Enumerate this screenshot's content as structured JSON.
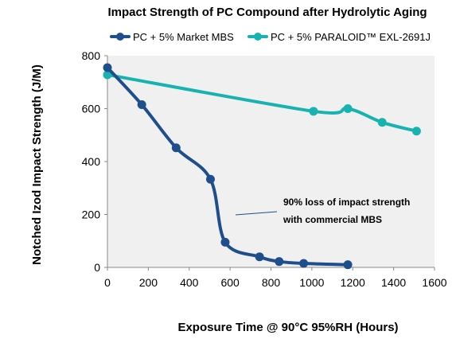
{
  "chart_data": {
    "type": "line",
    "title": "Impact Strength of PC Compound after Hydrolytic Aging",
    "xlabel": "Exposure Time @ 90°C 95%RH (Hours)",
    "ylabel": "Notched Izod Impact Strength (J/M)",
    "xlim": [
      0,
      1600
    ],
    "ylim": [
      0,
      800
    ],
    "xticks": [
      0,
      200,
      400,
      600,
      800,
      1000,
      1200,
      1400,
      1600
    ],
    "yticks": [
      0,
      200,
      400,
      600,
      800
    ],
    "grid": false,
    "legend_position": "top",
    "series": [
      {
        "name": "PC + 5% Market MBS",
        "color": "#1f4e8c",
        "x": [
          0,
          168,
          336,
          504,
          576,
          744,
          840,
          960,
          1176
        ],
        "y": [
          755,
          615,
          452,
          333,
          95,
          40,
          22,
          15,
          10
        ]
      },
      {
        "name": "PC + 5% PARALOID™ EXL-2691J",
        "color": "#17b3b1",
        "x": [
          0,
          1008,
          1176,
          1344,
          1512
        ],
        "y": [
          728,
          590,
          600,
          548,
          515
        ]
      }
    ],
    "annotations": [
      {
        "line1": "90% loss of impact strength",
        "line2": "with commercial MBS"
      }
    ]
  }
}
